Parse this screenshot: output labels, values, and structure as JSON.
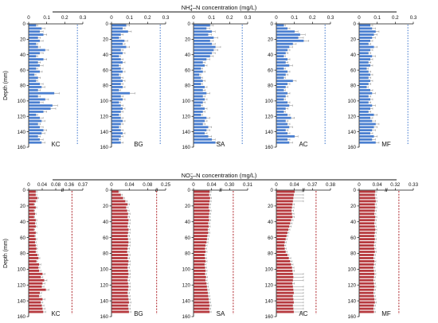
{
  "colors": {
    "nh4": "#4a7fd0",
    "no3": "#b73a3f",
    "axis": "#111111",
    "error": "#888888"
  },
  "chart_data": [
    {
      "type": "bar",
      "orientation": "horizontal",
      "title_main": "NH",
      "title_sub": "4",
      "title_sup": "+",
      "title_rest": "–N concentration (mg/L)",
      "ylabel": "Depth (mm)",
      "ylim": [
        160,
        0
      ],
      "yticks": [
        "0",
        "20",
        "40",
        "60",
        "80",
        "100",
        "120",
        "140",
        "160"
      ],
      "depths": [
        2,
        6,
        10,
        14,
        18,
        22,
        26,
        30,
        34,
        38,
        42,
        46,
        50,
        54,
        58,
        62,
        66,
        70,
        74,
        78,
        82,
        86,
        90,
        94,
        98,
        102,
        106,
        110,
        114,
        118,
        122,
        126,
        130,
        134,
        138,
        142,
        146,
        150,
        154
      ],
      "reference_line": {
        "style": "dotted",
        "value": "axis end"
      },
      "panels": [
        {
          "name": "KC",
          "xticks": [
            "0",
            "0.1",
            "0.2",
            "0.3"
          ],
          "xlim": [
            0,
            0.3
          ],
          "ref": 0.27,
          "values": [
            0.04,
            0.07,
            0.06,
            0.08,
            0.05,
            0.06,
            0.04,
            0.05,
            0.09,
            0.06,
            0.04,
            0.08,
            0.05,
            0.06,
            0.04,
            0.06,
            0.03,
            0.05,
            0.04,
            0.06,
            0.07,
            0.05,
            0.14,
            0.05,
            0.09,
            0.06,
            0.13,
            0.12,
            0.08,
            0.04,
            0.06,
            0.07,
            0.05,
            0.06,
            0.08,
            0.07,
            0.05,
            0.06,
            0.07
          ],
          "errors": [
            0.01,
            0.02,
            0.02,
            0.02,
            0.015,
            0.02,
            0.01,
            0.015,
            0.02,
            0.02,
            0.01,
            0.02,
            0.015,
            0.02,
            0.01,
            0.015,
            0.01,
            0.015,
            0.01,
            0.02,
            0.02,
            0.015,
            0.03,
            0.015,
            0.02,
            0.02,
            0.03,
            0.03,
            0.02,
            0.01,
            0.02,
            0.02,
            0.015,
            0.02,
            0.02,
            0.02,
            0.015,
            0.02,
            0.02
          ]
        },
        {
          "name": "BG",
          "xticks": [
            "0",
            "0.1",
            "0.2",
            "0.3"
          ],
          "xlim": [
            0,
            0.3
          ],
          "ref": 0.27,
          "values": [
            0.08,
            0.06,
            0.09,
            0.05,
            0.04,
            0.07,
            0.06,
            0.08,
            0.05,
            0.06,
            0.04,
            0.05,
            0.06,
            0.04,
            0.05,
            0.06,
            0.04,
            0.05,
            0.06,
            0.05,
            0.06,
            0.04,
            0.1,
            0.05,
            0.06,
            0.04,
            0.05,
            0.06,
            0.05,
            0.04,
            0.05,
            0.06,
            0.05,
            0.04,
            0.05,
            0.06,
            0.05,
            0.04,
            0.05
          ],
          "errors": [
            0.02,
            0.015,
            0.02,
            0.015,
            0.01,
            0.02,
            0.015,
            0.02,
            0.015,
            0.015,
            0.01,
            0.015,
            0.015,
            0.01,
            0.015,
            0.015,
            0.01,
            0.015,
            0.015,
            0.015,
            0.015,
            0.01,
            0.03,
            0.015,
            0.015,
            0.01,
            0.015,
            0.015,
            0.015,
            0.01,
            0.015,
            0.015,
            0.015,
            0.01,
            0.015,
            0.015,
            0.015,
            0.01,
            0.015
          ]
        },
        {
          "name": "SA",
          "xticks": [
            "0",
            "0.1",
            "0.2",
            "0.3"
          ],
          "xlim": [
            0,
            0.3
          ],
          "ref": 0.27,
          "values": [
            0.09,
            0.07,
            0.1,
            0.08,
            0.11,
            0.09,
            0.1,
            0.12,
            0.11,
            0.1,
            0.09,
            0.07,
            0.05,
            0.06,
            0.04,
            0.05,
            0.03,
            0.04,
            0.05,
            0.04,
            0.06,
            0.05,
            0.07,
            0.05,
            0.06,
            0.05,
            0.04,
            0.06,
            0.05,
            0.04,
            0.07,
            0.06,
            0.05,
            0.08,
            0.07,
            0.06,
            0.08,
            0.1,
            0.12
          ],
          "errors": [
            0.02,
            0.02,
            0.02,
            0.02,
            0.025,
            0.02,
            0.02,
            0.03,
            0.025,
            0.02,
            0.02,
            0.02,
            0.015,
            0.015,
            0.01,
            0.015,
            0.01,
            0.01,
            0.015,
            0.01,
            0.015,
            0.015,
            0.02,
            0.015,
            0.015,
            0.015,
            0.01,
            0.015,
            0.015,
            0.01,
            0.02,
            0.015,
            0.015,
            0.02,
            0.02,
            0.015,
            0.02,
            0.02,
            0.03
          ]
        },
        {
          "name": "AC",
          "xticks": [
            "0",
            "0.1",
            "0.2",
            "0.3"
          ],
          "xlim": [
            0,
            0.3
          ],
          "ref": 0.27,
          "values": [
            0.04,
            0.06,
            0.1,
            0.13,
            0.12,
            0.15,
            0.09,
            0.07,
            0.06,
            0.05,
            0.04,
            0.06,
            0.05,
            0.07,
            0.04,
            0.06,
            0.05,
            0.04,
            0.09,
            0.06,
            0.05,
            0.04,
            0.06,
            0.05,
            0.04,
            0.06,
            0.07,
            0.05,
            0.04,
            0.06,
            0.08,
            0.05,
            0.06,
            0.07,
            0.05,
            0.06,
            0.1,
            0.06,
            0.07
          ],
          "errors": [
            0.01,
            0.015,
            0.02,
            0.03,
            0.03,
            0.03,
            0.02,
            0.02,
            0.015,
            0.015,
            0.01,
            0.015,
            0.015,
            0.02,
            0.01,
            0.015,
            0.015,
            0.01,
            0.02,
            0.015,
            0.015,
            0.01,
            0.015,
            0.015,
            0.01,
            0.015,
            0.02,
            0.015,
            0.01,
            0.015,
            0.02,
            0.015,
            0.015,
            0.02,
            0.015,
            0.015,
            0.02,
            0.015,
            0.02
          ]
        },
        {
          "name": "MF",
          "xticks": [
            "0",
            "0.1",
            "0.2",
            "0.3"
          ],
          "xlim": [
            0,
            0.3
          ],
          "ref": 0.27,
          "values": [
            0.06,
            0.07,
            0.09,
            0.08,
            0.07,
            0.06,
            0.05,
            0.08,
            0.06,
            0.05,
            0.07,
            0.06,
            0.05,
            0.06,
            0.04,
            0.05,
            0.06,
            0.05,
            0.06,
            0.05,
            0.04,
            0.06,
            0.07,
            0.05,
            0.06,
            0.05,
            0.07,
            0.06,
            0.05,
            0.08,
            0.06,
            0.07,
            0.09,
            0.08,
            0.07,
            0.06,
            0.08,
            0.07,
            0.09
          ],
          "errors": [
            0.015,
            0.02,
            0.02,
            0.02,
            0.02,
            0.015,
            0.015,
            0.02,
            0.015,
            0.015,
            0.02,
            0.015,
            0.015,
            0.015,
            0.01,
            0.015,
            0.015,
            0.015,
            0.015,
            0.015,
            0.01,
            0.015,
            0.02,
            0.015,
            0.015,
            0.015,
            0.02,
            0.015,
            0.015,
            0.02,
            0.015,
            0.02,
            0.02,
            0.02,
            0.02,
            0.015,
            0.02,
            0.02,
            0.02
          ]
        }
      ]
    },
    {
      "type": "bar",
      "orientation": "horizontal",
      "title_main": "NO",
      "title_sub": "3",
      "title_sup": "–",
      "title_rest": "–N concentration (mg/L)",
      "ylabel": "Depth (mm)",
      "ylim": [
        160,
        0
      ],
      "yticks": [
        "0",
        "20",
        "40",
        "60",
        "80",
        "100",
        "120",
        "140",
        "160"
      ],
      "depths": [
        2,
        6,
        10,
        14,
        18,
        22,
        26,
        30,
        34,
        38,
        42,
        46,
        50,
        54,
        58,
        62,
        66,
        70,
        74,
        78,
        82,
        86,
        90,
        94,
        98,
        102,
        106,
        110,
        114,
        118,
        122,
        126,
        130,
        134,
        138,
        142,
        146,
        150,
        154
      ],
      "reference_line": {
        "style": "dashed",
        "value": "axis end"
      },
      "panels": [
        {
          "name": "KC",
          "xticks": [
            "0",
            "0.04",
            "0.08",
            "0.36",
            "0.37"
          ],
          "break_after": "0.08",
          "xlim": [
            0,
            0.37
          ],
          "ref": 0.362,
          "values": [
            0.02,
            0.02,
            0.025,
            0.02,
            0.015,
            0.02,
            0.015,
            0.018,
            0.015,
            0.02,
            0.018,
            0.02,
            0.015,
            0.02,
            0.017,
            0.02,
            0.018,
            0.02,
            0.022,
            0.02,
            0.025,
            0.028,
            0.022,
            0.03,
            0.028,
            0.03,
            0.04,
            0.035,
            0.045,
            0.04,
            0.038,
            0.05,
            0.032,
            0.03,
            0.04,
            0.035,
            0.038,
            0.04,
            0.042
          ],
          "errors": [
            0.004,
            0.004,
            0.005,
            0.004,
            0.003,
            0.004,
            0.003,
            0.004,
            0.003,
            0.004,
            0.004,
            0.004,
            0.003,
            0.004,
            0.003,
            0.004,
            0.004,
            0.004,
            0.004,
            0.004,
            0.005,
            0.005,
            0.004,
            0.006,
            0.005,
            0.006,
            0.008,
            0.007,
            0.009,
            0.008,
            0.007,
            0.01,
            0.006,
            0.006,
            0.008,
            0.007,
            0.007,
            0.008,
            0.008
          ]
        },
        {
          "name": "BG",
          "xticks": [
            "0",
            "0.04",
            "0.08",
            "0.25"
          ],
          "break_after": "0.08",
          "xlim": [
            0,
            0.25
          ],
          "ref": 0.245,
          "values": [
            0.015,
            0.02,
            0.025,
            0.03,
            0.035,
            0.032,
            0.034,
            0.036,
            0.035,
            0.037,
            0.036,
            0.035,
            0.037,
            0.036,
            0.035,
            0.036,
            0.037,
            0.036,
            0.035,
            0.034,
            0.036,
            0.035,
            0.037,
            0.036,
            0.035,
            0.036,
            0.037,
            0.036,
            0.035,
            0.036,
            0.037,
            0.036,
            0.035,
            0.036,
            0.037,
            0.038,
            0.036,
            0.037,
            0.038
          ],
          "errors": [
            0.003,
            0.004,
            0.004,
            0.005,
            0.005,
            0.005,
            0.005,
            0.005,
            0.005,
            0.005,
            0.005,
            0.005,
            0.005,
            0.005,
            0.005,
            0.005,
            0.005,
            0.005,
            0.005,
            0.005,
            0.005,
            0.005,
            0.005,
            0.005,
            0.005,
            0.005,
            0.005,
            0.005,
            0.005,
            0.005,
            0.005,
            0.005,
            0.005,
            0.005,
            0.005,
            0.005,
            0.005,
            0.005,
            0.005
          ]
        },
        {
          "name": "SA",
          "xticks": [
            "0",
            "0.04",
            "0.30",
            "0.31"
          ],
          "break_after": "0.04",
          "xlim": [
            0,
            0.31
          ],
          "ref": 0.302,
          "values": [
            0.035,
            0.034,
            0.036,
            0.035,
            0.034,
            0.033,
            0.035,
            0.034,
            0.033,
            0.034,
            0.032,
            0.033,
            0.031,
            0.032,
            0.03,
            0.029,
            0.028,
            0.026,
            0.025,
            0.026,
            0.024,
            0.025,
            0.026,
            0.024,
            0.025,
            0.026,
            0.025,
            0.027,
            0.026,
            0.028,
            0.029,
            0.03,
            0.031,
            0.032,
            0.033,
            0.034,
            0.035,
            0.034,
            0.035
          ],
          "errors": [
            0.004,
            0.004,
            0.004,
            0.004,
            0.004,
            0.004,
            0.004,
            0.004,
            0.004,
            0.004,
            0.004,
            0.004,
            0.004,
            0.004,
            0.004,
            0.004,
            0.004,
            0.004,
            0.004,
            0.004,
            0.004,
            0.004,
            0.004,
            0.004,
            0.004,
            0.004,
            0.004,
            0.004,
            0.004,
            0.004,
            0.004,
            0.004,
            0.004,
            0.004,
            0.004,
            0.004,
            0.004,
            0.004,
            0.004
          ]
        },
        {
          "name": "AC",
          "xticks": [
            "0",
            "0.04",
            "0.37",
            "0.38"
          ],
          "break_after": "0.04",
          "xlim": [
            0,
            0.38
          ],
          "ref": 0.372,
          "values": [
            0.04,
            0.038,
            0.037,
            0.036,
            0.035,
            0.034,
            0.033,
            0.034,
            0.035,
            0.032,
            0.03,
            0.028,
            0.026,
            0.024,
            0.022,
            0.02,
            0.018,
            0.017,
            0.018,
            0.02,
            0.024,
            0.027,
            0.03,
            0.032,
            0.034,
            0.035,
            0.036,
            0.037,
            0.036,
            0.035,
            0.036,
            0.037,
            0.038,
            0.036,
            0.037,
            0.038,
            0.036,
            0.037,
            0.038
          ],
          "errors": [
            0.005,
            0.005,
            0.005,
            0.005,
            0.005,
            0.005,
            0.005,
            0.005,
            0.005,
            0.005,
            0.005,
            0.005,
            0.004,
            0.004,
            0.004,
            0.004,
            0.004,
            0.004,
            0.004,
            0.004,
            0.004,
            0.005,
            0.005,
            0.005,
            0.005,
            0.005,
            0.005,
            0.005,
            0.005,
            0.005,
            0.005,
            0.005,
            0.005,
            0.005,
            0.005,
            0.005,
            0.005,
            0.005,
            0.005
          ]
        },
        {
          "name": "MF",
          "xticks": [
            "0",
            "0.04",
            "0.32",
            "0.33"
          ],
          "break_after": "0.04",
          "xlim": [
            0,
            0.33
          ],
          "ref": 0.322,
          "values": [
            0.035,
            0.034,
            0.035,
            0.036,
            0.034,
            0.035,
            0.034,
            0.033,
            0.035,
            0.034,
            0.033,
            0.034,
            0.035,
            0.034,
            0.033,
            0.034,
            0.033,
            0.032,
            0.033,
            0.034,
            0.032,
            0.031,
            0.033,
            0.032,
            0.031,
            0.032,
            0.033,
            0.032,
            0.031,
            0.032,
            0.033,
            0.032,
            0.031,
            0.032,
            0.033,
            0.034,
            0.032,
            0.031,
            0.032
          ],
          "errors": [
            0.004,
            0.004,
            0.004,
            0.004,
            0.004,
            0.004,
            0.004,
            0.004,
            0.004,
            0.004,
            0.004,
            0.004,
            0.004,
            0.004,
            0.004,
            0.004,
            0.004,
            0.004,
            0.004,
            0.004,
            0.004,
            0.004,
            0.004,
            0.004,
            0.004,
            0.004,
            0.004,
            0.004,
            0.004,
            0.004,
            0.004,
            0.004,
            0.004,
            0.004,
            0.004,
            0.004,
            0.004,
            0.004,
            0.004
          ]
        }
      ]
    }
  ]
}
